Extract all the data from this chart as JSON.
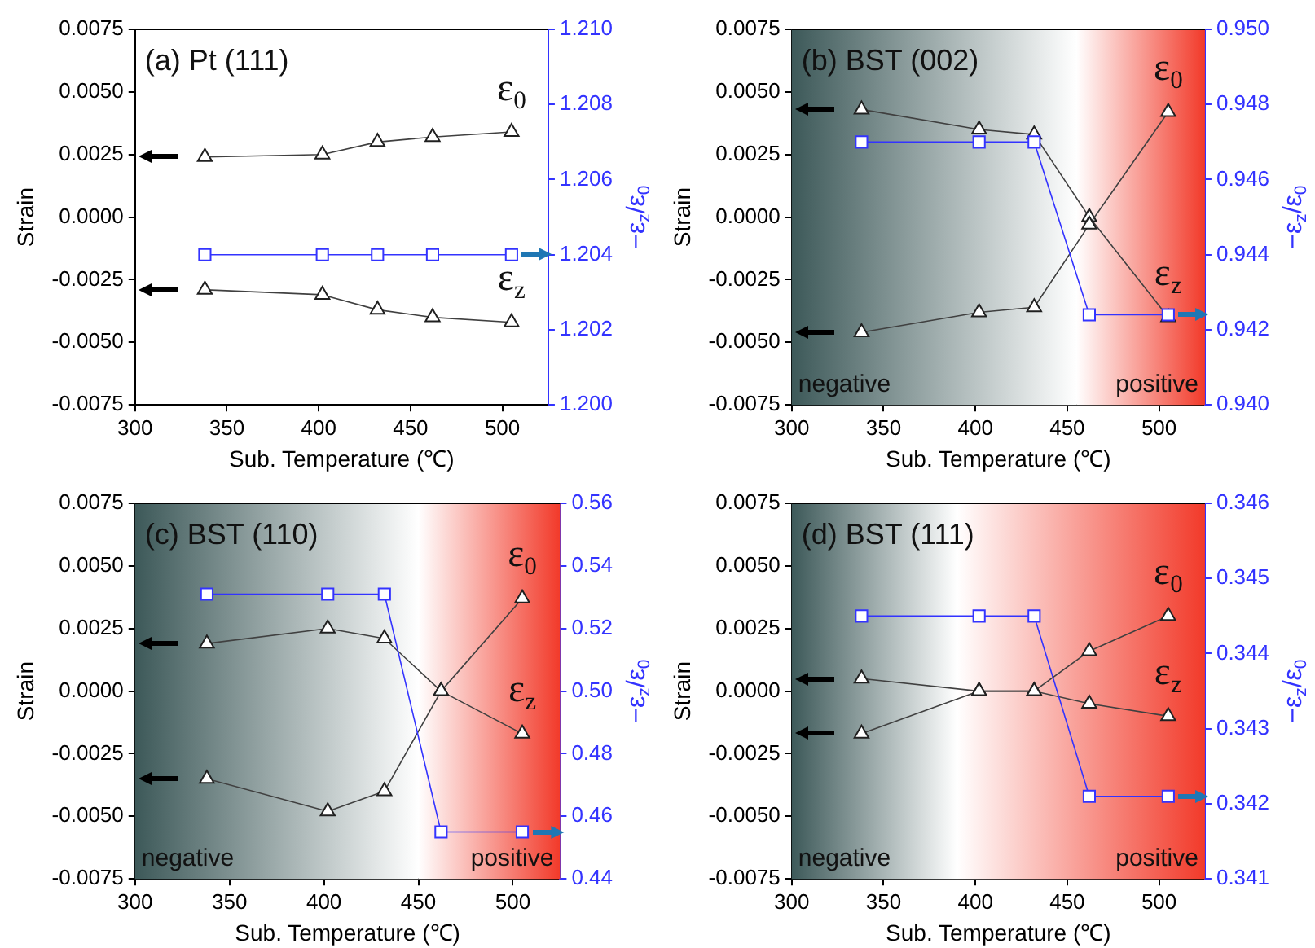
{
  "chart_data": [
    {
      "type": "line",
      "title": "(a) Pt (111)",
      "xlabel": "Sub. Temperature (℃)",
      "ylabel": "Strain",
      "y2label": "−ε$_{z}$/ε$_{0}$",
      "x": [
        338,
        402,
        432,
        462,
        505
      ],
      "xlim": [
        300,
        525
      ],
      "xticks": [
        300,
        350,
        400,
        450,
        500
      ],
      "ylim": [
        -0.0075,
        0.0075
      ],
      "yticks": [
        -0.0075,
        {
          "value": -0.005,
          "label": "-0.0050"
        },
        -0.0025,
        {
          "value": 0,
          "label": "0.0000"
        },
        0.0025,
        {
          "value": 0.005,
          "label": "0.0050"
        },
        0.0075
      ],
      "y2lim": [
        1.2,
        1.21
      ],
      "y2ticks": [
        {
          "value": 1.2,
          "label": "1.200"
        },
        1.202,
        1.204,
        1.206,
        1.208,
        {
          "value": 1.21,
          "label": "1.210"
        }
      ],
      "grid": false,
      "legend": false,
      "series": [
        {
          "name": "ε$_{0}$",
          "color": "#404040",
          "marker": "triangle",
          "values": [
            0.0024,
            0.0025,
            0.003,
            0.0032,
            0.0034
          ]
        },
        {
          "name": "ε$_{z}$",
          "color": "#404040",
          "marker": "triangle",
          "values": [
            -0.0029,
            -0.0031,
            -0.0037,
            -0.004,
            -0.0042
          ]
        },
        {
          "color": "#3333ff",
          "marker": "square",
          "axis": "y2",
          "values": [
            1.204,
            1.204,
            1.204,
            1.204,
            1.204
          ]
        }
      ]
    },
    {
      "type": "line",
      "title": "(b) BST (002)",
      "xlabel": "Sub. Temperature (℃)",
      "ylabel": "Strain",
      "y2label": "−ε$_{z}$/ε$_{0}$",
      "x": [
        338,
        402,
        432,
        462,
        505
      ],
      "xlim": [
        300,
        525
      ],
      "xticks": [
        300,
        350,
        400,
        450,
        500
      ],
      "ylim": [
        -0.0075,
        0.0075
      ],
      "yticks": [
        -0.0075,
        {
          "value": -0.005,
          "label": "-0.0050"
        },
        -0.0025,
        {
          "value": 0,
          "label": "0.0000"
        },
        0.0025,
        {
          "value": 0.005,
          "label": "0.0050"
        },
        0.0075
      ],
      "y2lim": [
        0.94,
        0.95
      ],
      "y2ticks": [
        {
          "value": 0.94,
          "label": "0.940"
        },
        0.942,
        0.944,
        0.946,
        0.948,
        {
          "value": 0.95,
          "label": "0.950"
        }
      ],
      "grid": false,
      "legend": false,
      "series": [
        {
          "name": "ε$_{0}$",
          "color": "#404040",
          "marker": "triangle",
          "values": [
            -0.0046,
            -0.0038,
            -0.0036,
            -0.0003,
            0.0042
          ]
        },
        {
          "name": "ε$_{z}$",
          "color": "#404040",
          "marker": "triangle",
          "values": [
            0.0043,
            0.0035,
            0.0033,
            0.0,
            -0.004
          ]
        },
        {
          "color": "#3333ff",
          "marker": "square",
          "axis": "y2",
          "values": [
            0.947,
            0.947,
            0.947,
            0.9424,
            0.9424
          ]
        }
      ],
      "bands": [
        {
          "axis": "x",
          "from": 300,
          "to": 455,
          "label": "negative",
          "color": "#3d5959"
        },
        {
          "axis": "x",
          "from": 455,
          "to": 525,
          "label": "positive",
          "color": "#f23a2a"
        }
      ]
    },
    {
      "type": "line",
      "title": "(c) BST (110)",
      "xlabel": "Sub. Temperature (℃)",
      "ylabel": "Strain",
      "y2label": "−ε$_{z}$/ε$_{0}$",
      "x": [
        338,
        402,
        432,
        462,
        505
      ],
      "xlim": [
        300,
        525
      ],
      "xticks": [
        300,
        350,
        400,
        450,
        500
      ],
      "ylim": [
        -0.0075,
        0.0075
      ],
      "yticks": [
        -0.0075,
        {
          "value": -0.005,
          "label": "-0.0050"
        },
        -0.0025,
        {
          "value": 0,
          "label": "0.0000"
        },
        0.0025,
        {
          "value": 0.005,
          "label": "0.0050"
        },
        0.0075
      ],
      "y2lim": [
        0.44,
        0.56
      ],
      "y2ticks": [
        0.44,
        0.46,
        0.48,
        {
          "value": 0.5,
          "label": "0.50"
        },
        0.52,
        0.54,
        0.56
      ],
      "grid": false,
      "legend": false,
      "series": [
        {
          "name": "ε$_{0}$",
          "color": "#404040",
          "marker": "triangle",
          "values": [
            -0.0035,
            -0.0048,
            -0.004,
            0.0,
            0.0037
          ]
        },
        {
          "name": "ε$_{z}$",
          "color": "#404040",
          "marker": "triangle",
          "values": [
            0.0019,
            0.0025,
            0.0021,
            0.0,
            -0.0017
          ]
        },
        {
          "color": "#3333ff",
          "marker": "square",
          "axis": "y2",
          "values": [
            0.531,
            0.531,
            0.531,
            0.455,
            0.455
          ]
        }
      ],
      "bands": [
        {
          "axis": "x",
          "from": 300,
          "to": 450,
          "label": "negative",
          "color": "#3d5959"
        },
        {
          "axis": "x",
          "from": 450,
          "to": 525,
          "label": "positive",
          "color": "#f23a2a"
        }
      ]
    },
    {
      "type": "line",
      "title": "(d) BST (111)",
      "xlabel": "Sub. Temperature (℃)",
      "ylabel": "Strain",
      "y2label": "−ε$_{z}$/ε$_{0}$",
      "x": [
        338,
        402,
        432,
        462,
        505
      ],
      "xlim": [
        300,
        525
      ],
      "xticks": [
        300,
        350,
        400,
        450,
        500
      ],
      "ylim": [
        -0.0075,
        0.0075
      ],
      "yticks": [
        -0.0075,
        {
          "value": -0.005,
          "label": "-0.0050"
        },
        -0.0025,
        {
          "value": 0,
          "label": "0.0000"
        },
        0.0025,
        {
          "value": 0.005,
          "label": "0.0050"
        },
        0.0075
      ],
      "y2lim": [
        0.341,
        0.346
      ],
      "y2ticks": [
        0.341,
        0.342,
        0.343,
        0.344,
        0.345,
        0.346
      ],
      "grid": false,
      "legend": false,
      "series": [
        {
          "name": "ε$_{0}$",
          "color": "#404040",
          "marker": "triangle",
          "values": [
            -0.0017,
            0.0,
            0.0,
            0.0016,
            0.003
          ]
        },
        {
          "name": "ε$_{z}$",
          "color": "#404040",
          "marker": "triangle",
          "values": [
            0.0005,
            0.0,
            0.0,
            -0.0005,
            -0.001
          ]
        },
        {
          "color": "#3333ff",
          "marker": "square",
          "axis": "y2",
          "values": [
            0.3445,
            0.3445,
            0.3445,
            0.3421,
            0.3421
          ]
        }
      ],
      "bands": [
        {
          "axis": "x",
          "from": 300,
          "to": 390,
          "label": "negative",
          "color": "#3d5959"
        },
        {
          "axis": "x",
          "from": 390,
          "to": 525,
          "label": "positive",
          "color": "#f23a2a"
        }
      ]
    }
  ]
}
